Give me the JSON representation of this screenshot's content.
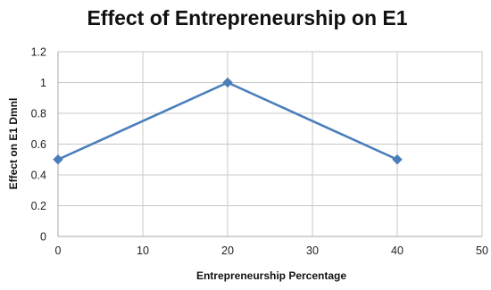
{
  "chart_data": {
    "type": "line",
    "title": "Effect of Entrepreneurship on E1",
    "xlabel": "Entrepreneurship Percentage",
    "ylabel": "Effect on E1 Dmnl",
    "xlim": [
      0,
      50
    ],
    "ylim": [
      0,
      1.2
    ],
    "x_ticks": [
      "0",
      "10",
      "20",
      "30",
      "40",
      "50"
    ],
    "y_ticks": [
      "0",
      "0.2",
      "0.4",
      "0.6",
      "0.8",
      "1",
      "1.2"
    ],
    "grid": true,
    "legend": "none",
    "series": [
      {
        "x": [
          0,
          20,
          40
        ],
        "y": [
          0.5,
          1.0,
          0.5
        ],
        "color": "#4a7ebb",
        "marker": "diamond"
      }
    ]
  }
}
